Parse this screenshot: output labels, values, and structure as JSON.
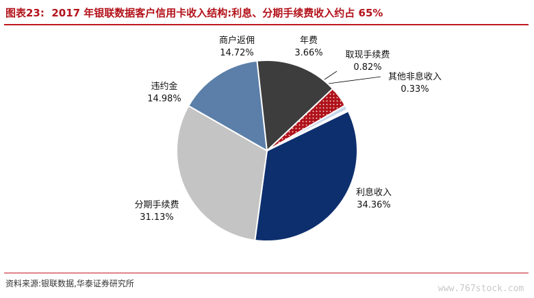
{
  "header": {
    "title_prefix": "图表23:",
    "title_text": "2017 年银联数据客户信用卡收入结构:利息、分期手续费收入约占 65%"
  },
  "footer": {
    "source": "资料来源:银联数据,华泰证券研究所",
    "watermark": "www.767stock.com"
  },
  "chart_data": {
    "type": "pie",
    "title": "2017 年银联数据客户信用卡收入结构:利息、分期手续费收入约占 65%",
    "slices": [
      {
        "label": "利息收入",
        "value": 34.36,
        "value_label": "34.36%",
        "color": "#0d2f6e"
      },
      {
        "label": "分期手续费",
        "value": 31.13,
        "value_label": "31.13%",
        "color": "#c4c4c4"
      },
      {
        "label": "违约金",
        "value": 14.98,
        "value_label": "14.98%",
        "color": "#5b7fa8"
      },
      {
        "label": "商户返佣",
        "value": 14.72,
        "value_label": "14.72%",
        "color": "#3d3d3d"
      },
      {
        "label": "年费",
        "value": 3.66,
        "value_label": "3.66%",
        "color": "#b0121a",
        "pattern": "dots"
      },
      {
        "label": "取现手续费",
        "value": 0.82,
        "value_label": "0.82%",
        "color": "#c6d7ea"
      },
      {
        "label": "其他非息收入",
        "value": 0.33,
        "value_label": "0.33%",
        "color": "#ffffff"
      }
    ]
  }
}
